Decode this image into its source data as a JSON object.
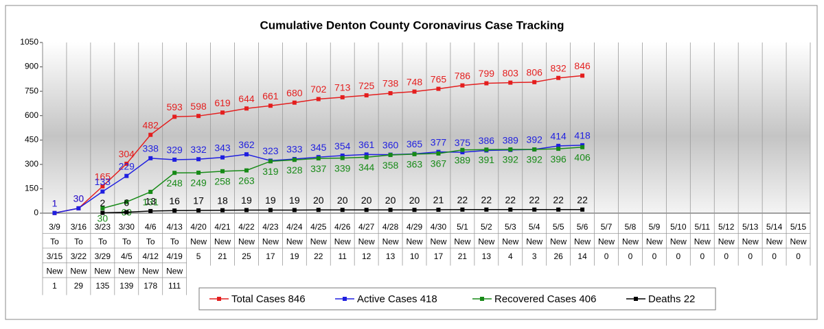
{
  "chart_data": {
    "type": "line",
    "title": "Cumulative Denton County Coronavirus Case Tracking",
    "categories": [
      "3/9",
      "3/16",
      "3/23",
      "3/30",
      "4/6",
      "4/13",
      "4/20",
      "4/21",
      "4/22",
      "4/23",
      "4/24",
      "4/25",
      "4/26",
      "4/27",
      "4/28",
      "4/29",
      "4/30",
      "5/1",
      "5/2",
      "5/3",
      "5/4",
      "5/5",
      "5/6",
      "5/7",
      "5/8",
      "5/9",
      "5/10",
      "5/11",
      "5/12",
      "5/13",
      "5/14",
      "5/15"
    ],
    "ylim": [
      0,
      1050
    ],
    "yticks": [
      0,
      150,
      300,
      450,
      600,
      750,
      900,
      1050
    ],
    "series": [
      {
        "name": "Total Cases 846",
        "color": "#e41e1e",
        "values": [
          1,
          30,
          165,
          304,
          482,
          593,
          598,
          619,
          644,
          661,
          680,
          702,
          713,
          725,
          738,
          748,
          765,
          786,
          799,
          803,
          806,
          832,
          846,
          null,
          null,
          null,
          null,
          null,
          null,
          null,
          null,
          null
        ]
      },
      {
        "name": "Active Cases 418",
        "color": "#1f1fe0",
        "values": [
          1,
          30,
          133,
          229,
          338,
          329,
          332,
          343,
          362,
          323,
          333,
          345,
          354,
          361,
          360,
          365,
          377,
          375,
          386,
          389,
          392,
          414,
          418,
          null,
          null,
          null,
          null,
          null,
          null,
          null,
          null,
          null
        ]
      },
      {
        "name": "Recovered Cases 406",
        "color": "#178a17",
        "values": [
          null,
          null,
          30,
          69,
          131,
          248,
          249,
          258,
          263,
          319,
          328,
          337,
          339,
          344,
          358,
          363,
          367,
          389,
          391,
          392,
          392,
          396,
          406,
          null,
          null,
          null,
          null,
          null,
          null,
          null,
          null,
          null
        ]
      },
      {
        "name": "Deaths 22",
        "color": "#000000",
        "values": [
          null,
          null,
          2,
          6,
          13,
          16,
          17,
          18,
          19,
          19,
          19,
          20,
          20,
          20,
          20,
          20,
          21,
          22,
          22,
          22,
          22,
          22,
          22,
          null,
          null,
          null,
          null,
          null,
          null,
          null,
          null,
          null
        ]
      }
    ]
  },
  "table": {
    "rows": [
      [
        "To",
        "To",
        "To",
        "To",
        "To",
        "To",
        "New",
        "New",
        "New",
        "New",
        "New",
        "New",
        "New",
        "New",
        "New",
        "New",
        "New",
        "New",
        "New",
        "New",
        "New",
        "New",
        "New",
        "New",
        "New",
        "New",
        "New",
        "New",
        "New",
        "New",
        "New",
        "New"
      ],
      [
        "3/15",
        "3/22",
        "3/29",
        "4/5",
        "4/12",
        "4/19",
        5,
        21,
        25,
        17,
        19,
        22,
        11,
        12,
        13,
        10,
        17,
        21,
        13,
        4,
        3,
        26,
        14,
        0,
        0,
        0,
        0,
        0,
        0,
        0,
        0,
        0
      ],
      [
        "New",
        "New",
        "New",
        "New",
        "New",
        "New",
        null,
        null,
        null,
        null,
        null,
        null,
        null,
        null,
        null,
        null,
        null,
        null,
        null,
        null,
        null,
        null,
        null,
        null,
        null,
        null,
        null,
        null,
        null,
        null,
        null,
        null
      ],
      [
        1,
        29,
        135,
        139,
        178,
        111,
        null,
        null,
        null,
        null,
        null,
        null,
        null,
        null,
        null,
        null,
        null,
        null,
        null,
        null,
        null,
        null,
        null,
        null,
        null,
        null,
        null,
        null,
        null,
        null,
        null,
        null
      ]
    ]
  }
}
